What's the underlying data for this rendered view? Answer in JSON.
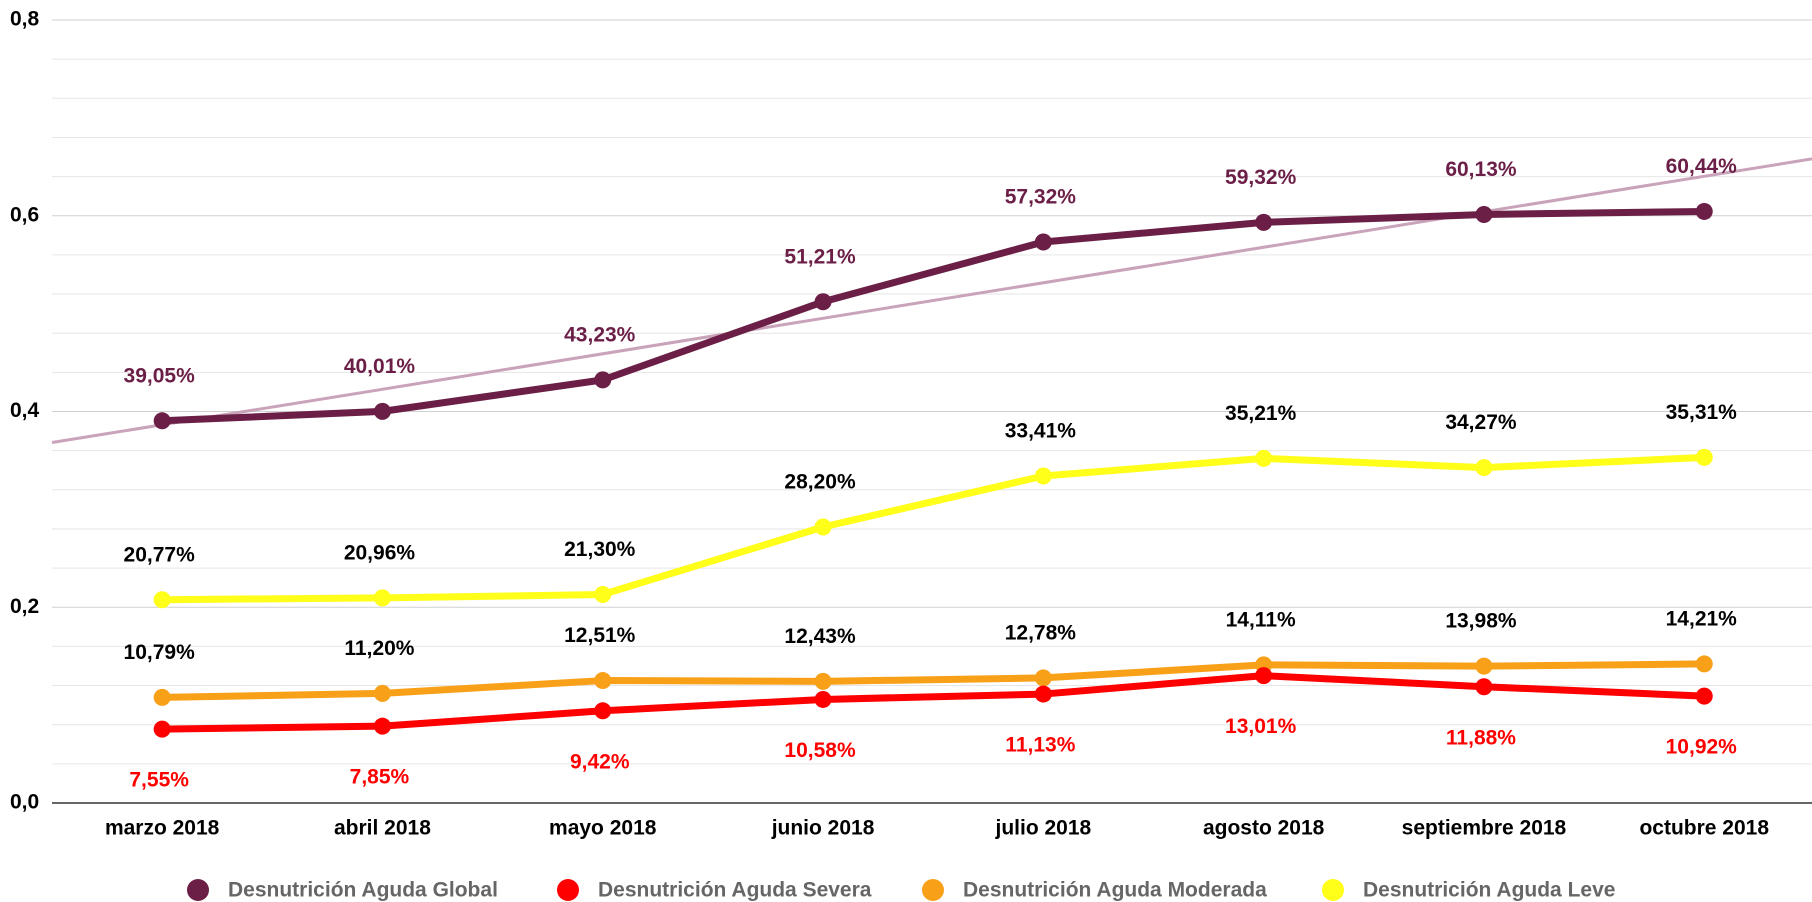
{
  "chart_data": {
    "type": "line",
    "categories": [
      "marzo 2018",
      "abril 2018",
      "mayo 2018",
      "junio 2018",
      "julio 2018",
      "agosto 2018",
      "septiembre 2018",
      "octubre 2018"
    ],
    "series": [
      {
        "name": "Desnutrición Aguda Global",
        "color": "#6b1f47",
        "label_color": "#6b1f47",
        "label_position": "above",
        "values": [
          0.3905,
          0.4001,
          0.4323,
          0.5121,
          0.5732,
          0.5932,
          0.6013,
          0.6044
        ],
        "value_labels": [
          "39,05%",
          "40,01%",
          "43,23%",
          "51,21%",
          "57,32%",
          "59,32%",
          "60,13%",
          "60,44%"
        ]
      },
      {
        "name": "Desnutrición Aguda Severa",
        "color": "#ff0000",
        "label_color": "#ff0000",
        "label_position": "below",
        "values": [
          0.0755,
          0.0785,
          0.0942,
          0.1058,
          0.1113,
          0.1301,
          0.1188,
          0.1092
        ],
        "value_labels": [
          "7,55%",
          "7,85%",
          "9,42%",
          "10,58%",
          "11,13%",
          "13,01%",
          "11,88%",
          "10,92%"
        ]
      },
      {
        "name": "Desnutrición Aguda Moderada",
        "color": "#f7a018",
        "label_color": "#000000",
        "label_position": "above",
        "values": [
          0.1079,
          0.112,
          0.1251,
          0.1243,
          0.1278,
          0.1411,
          0.1398,
          0.1421
        ],
        "value_labels": [
          "10,79%",
          "11,20%",
          "12,51%",
          "12,43%",
          "12,78%",
          "14,11%",
          "13,98%",
          "14,21%"
        ]
      },
      {
        "name": "Desnutrición Aguda Leve",
        "color": "#ffff1a",
        "label_color": "#000000",
        "label_position": "above",
        "values": [
          0.2077,
          0.2096,
          0.213,
          0.282,
          0.3341,
          0.3521,
          0.3427,
          0.3531
        ],
        "value_labels": [
          "20,77%",
          "20,96%",
          "21,30%",
          "28,20%",
          "33,41%",
          "35,21%",
          "34,27%",
          "35,31%"
        ]
      }
    ],
    "ylim": [
      0,
      0.8
    ],
    "yticks": [
      {
        "value": 0,
        "label": "0,0"
      },
      {
        "value": 0.2,
        "label": "0,2"
      },
      {
        "value": 0.4,
        "label": "0,4"
      },
      {
        "value": 0.6,
        "label": "0,6"
      },
      {
        "value": 0.8,
        "label": "0,8"
      }
    ],
    "minor_yticks": [
      0.04,
      0.08,
      0.12,
      0.16,
      0.24,
      0.28,
      0.32,
      0.36,
      0.44,
      0.48,
      0.52,
      0.56,
      0.64,
      0.68,
      0.72,
      0.76
    ],
    "grid": true,
    "trendline": {
      "series": 0,
      "color": "#c9a3b9"
    },
    "legend": "bottom"
  }
}
